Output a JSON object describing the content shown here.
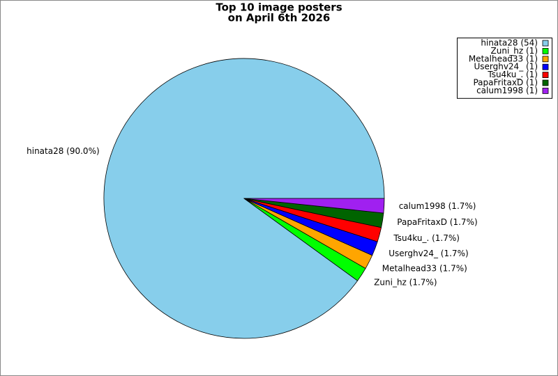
{
  "chart_data": {
    "type": "pie",
    "title": "Top 10 image posters",
    "subtitle": "on April 6th 2026",
    "categories": [
      "hinata28",
      "Zuni_hz",
      "Metalhead33",
      "Userghv24_",
      "Tsu4ku_.",
      "PapaFritaxD",
      "calum1998"
    ],
    "values": [
      54,
      1,
      1,
      1,
      1,
      1,
      1
    ],
    "legend_labels": [
      "hinata28 (54)",
      "Zuni_hz (1)",
      "Metalhead33 (1)",
      "Userghv24_ (1)",
      "Tsu4ku_. (1)",
      "PapaFritaxD (1)",
      "calum1998 (1)"
    ],
    "slice_labels": [
      "hinata28 (90.0%)",
      "Zuni_hz (1.7%)",
      "Metalhead33 (1.7%)",
      "Userghv24_ (1.7%)",
      "Tsu4ku_. (1.7%)",
      "PapaFritaxD (1.7%)",
      "calum1998 (1.7%)"
    ],
    "colors": [
      "#87ceeb",
      "#00ff00",
      "#ffa500",
      "#0000ff",
      "#ff0000",
      "#006400",
      "#a020f0"
    ],
    "legend_position": "upper right"
  }
}
